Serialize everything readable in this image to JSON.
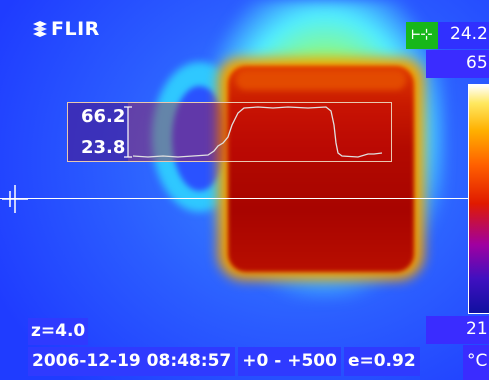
{
  "app": {
    "logo_text": "FLIR",
    "logo_icon": "flir-snowflake-icon"
  },
  "profile": {
    "max_label": "66.2",
    "min_label": "23.8"
  },
  "spot": {
    "icon": "spot-meter-icon",
    "value": "24.2"
  },
  "scale": {
    "max": "65",
    "min": "21",
    "unit": "°C"
  },
  "status": {
    "zoom": "z=4.0",
    "datetime": "2006-12-19 08:48:57",
    "level_span": "+0 -  +500",
    "emissivity": "e=0.92"
  },
  "colors": {
    "overlay_blue": "#2f3aff",
    "spot_green": "#17b71a"
  }
}
